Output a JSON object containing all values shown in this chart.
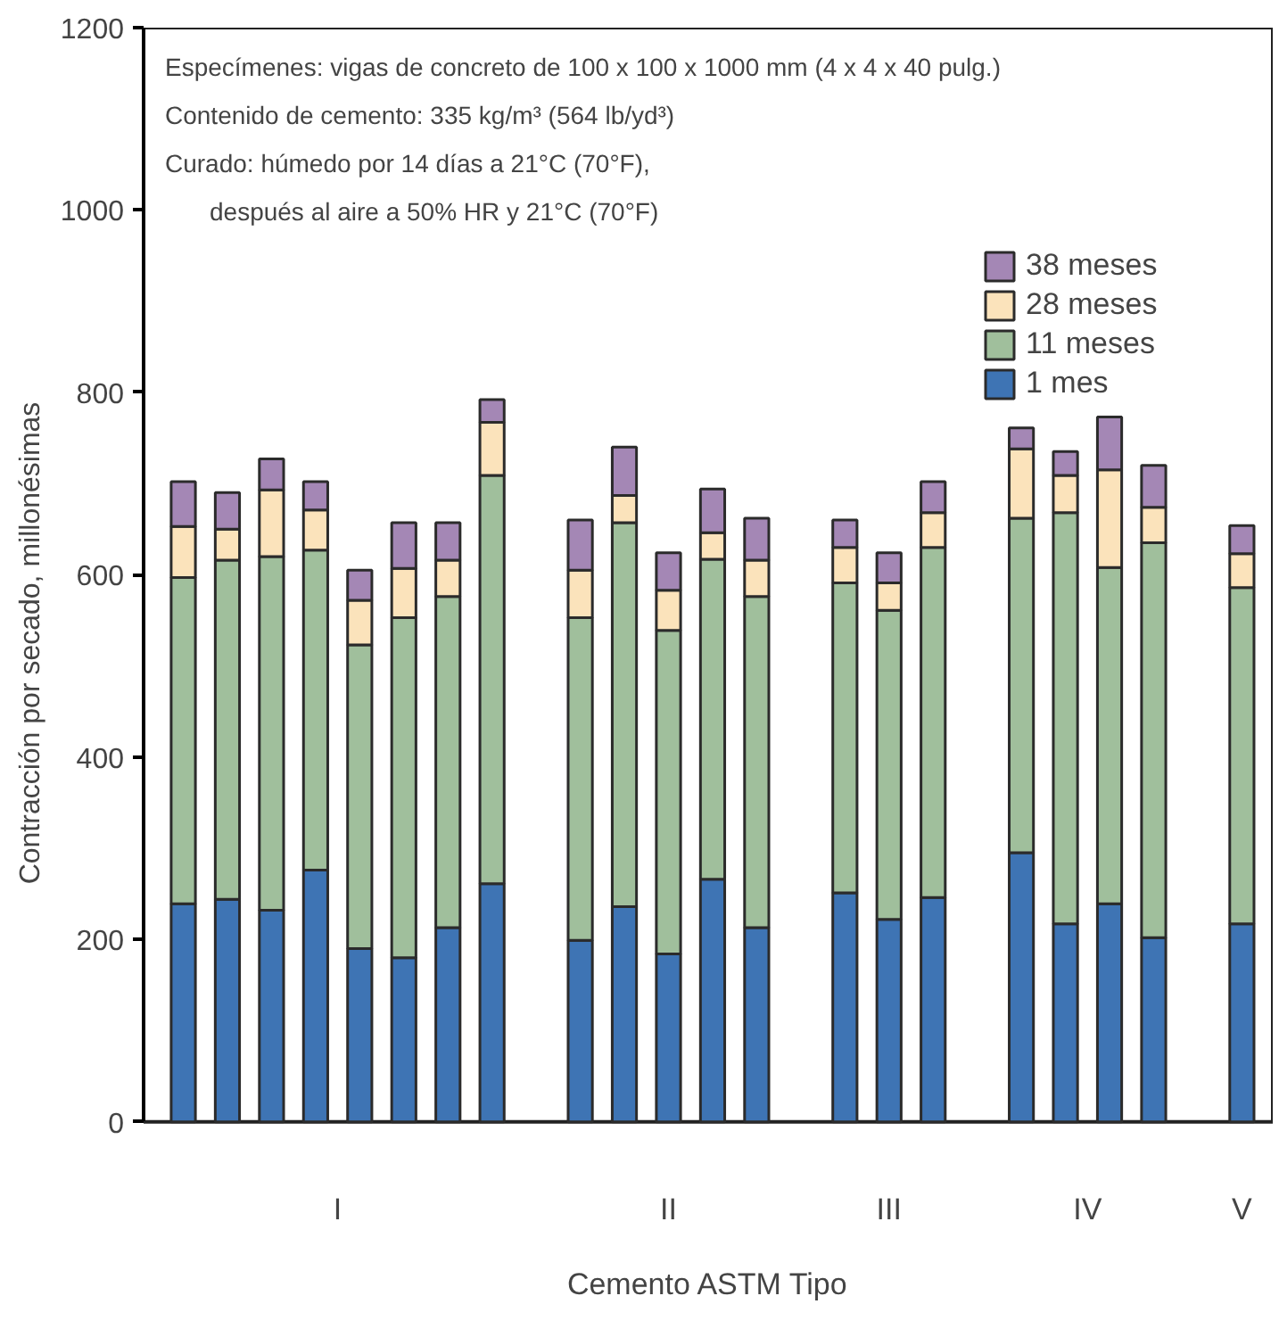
{
  "chart_data": {
    "type": "bar",
    "stacked": true,
    "xlabel": "Cemento ASTM Tipo",
    "ylabel": "Contracción por secado, millonésimas",
    "categories": [
      null,
      null,
      null,
      null,
      null,
      null,
      null,
      null,
      null,
      null,
      null,
      null,
      null,
      null,
      null,
      null,
      null,
      null,
      null,
      null,
      null,
      null,
      null,
      null,
      null
    ],
    "series": [
      {
        "name": "1 mes",
        "color": "#3e74b4",
        "values": [
          239,
          244,
          232,
          276,
          190,
          180,
          213,
          261,
          null,
          199,
          236,
          184,
          266,
          213,
          null,
          251,
          222,
          246,
          null,
          295,
          217,
          239,
          202,
          null,
          217
        ]
      },
      {
        "name": "11 meses",
        "color": "#a0bf9c",
        "values": [
          358,
          372,
          388,
          351,
          333,
          373,
          363,
          448,
          null,
          354,
          421,
          355,
          351,
          363,
          null,
          340,
          339,
          384,
          null,
          367,
          451,
          369,
          433,
          null,
          369
        ]
      },
      {
        "name": "28 meses",
        "color": "#fbe3bb",
        "values": [
          56,
          34,
          73,
          44,
          49,
          54,
          40,
          58,
          null,
          52,
          30,
          44,
          29,
          40,
          null,
          39,
          30,
          38,
          null,
          76,
          41,
          107,
          39,
          null,
          37
        ]
      },
      {
        "name": "38 meses",
        "color": "#a487b5",
        "values": [
          49,
          40,
          34,
          31,
          33,
          50,
          41,
          25,
          null,
          55,
          53,
          41,
          48,
          46,
          null,
          30,
          33,
          34,
          null,
          23,
          26,
          58,
          46,
          null,
          31
        ]
      }
    ],
    "ylim": [
      0,
      1200
    ],
    "yticks": [
      0,
      200,
      400,
      600,
      800,
      1000,
      1200
    ],
    "legend": "top right",
    "annotations": [
      "Especímenes: vigas de concreto de 100 x 100 x 1000 mm (4 x 4 x 40 pulg.)",
      "Contenido de cemento: 335 kg/m³ (564 lb/yd³)",
      "Curado: húmedo por 14 días a 21°C (70°F),\ndespués al aire a 50% HR y 21°C (70°F)",
      "I",
      "II",
      "III",
      "IV",
      "V"
    ]
  }
}
